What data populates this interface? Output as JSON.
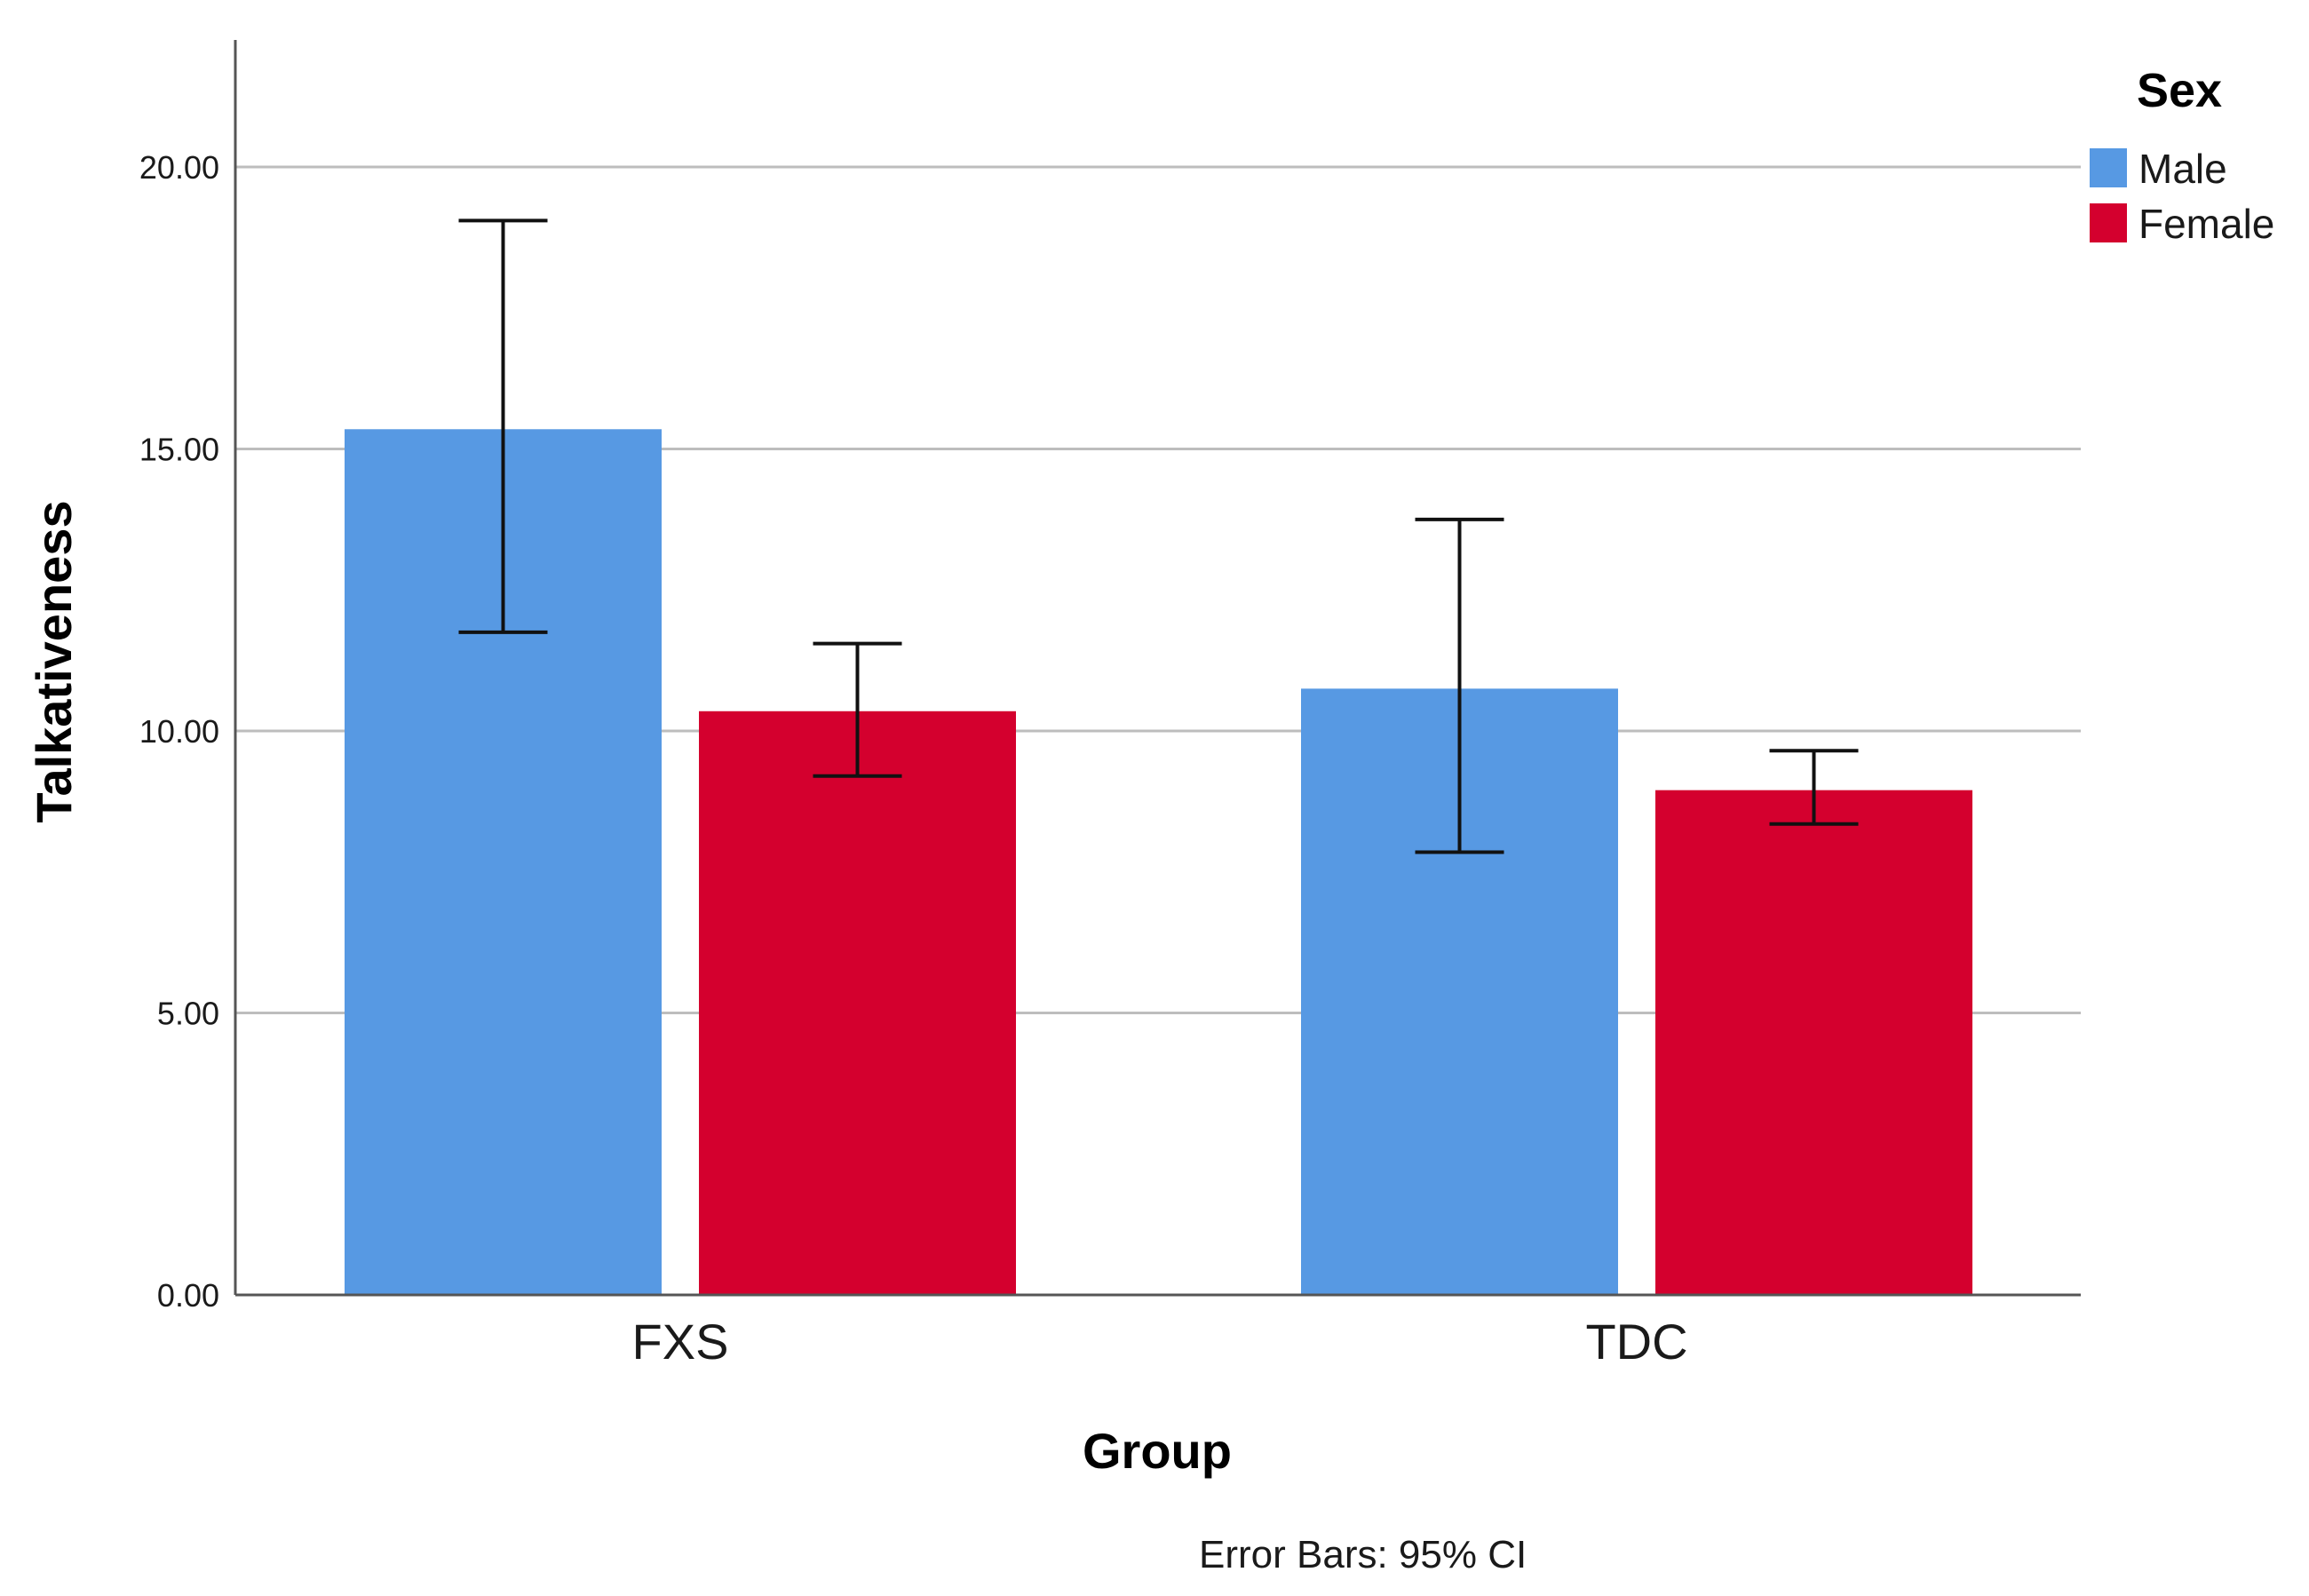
{
  "chart_data": {
    "type": "bar",
    "title": "",
    "xlabel": "Group",
    "ylabel": "Talkativeness",
    "categories": [
      "FXS",
      "TDC"
    ],
    "ylim": [
      0,
      22
    ],
    "yticks": [
      0,
      5,
      10,
      15,
      20
    ],
    "ytick_labels": [
      "0.00",
      "5.00",
      "10.00",
      "15.00",
      "20.00"
    ],
    "grid": true,
    "legend": {
      "title": "Sex",
      "position": "top-right"
    },
    "series": [
      {
        "name": "Male",
        "color": "#5799e3",
        "values": [
          15.35,
          10.75
        ],
        "ci_low": [
          11.75,
          7.85
        ],
        "ci_high": [
          19.05,
          13.75
        ]
      },
      {
        "name": "Female",
        "color": "#d4002e",
        "values": [
          10.35,
          8.95
        ],
        "ci_low": [
          9.2,
          8.35
        ],
        "ci_high": [
          11.55,
          9.65
        ]
      }
    ],
    "footnote": "Error Bars: 95% CI"
  }
}
